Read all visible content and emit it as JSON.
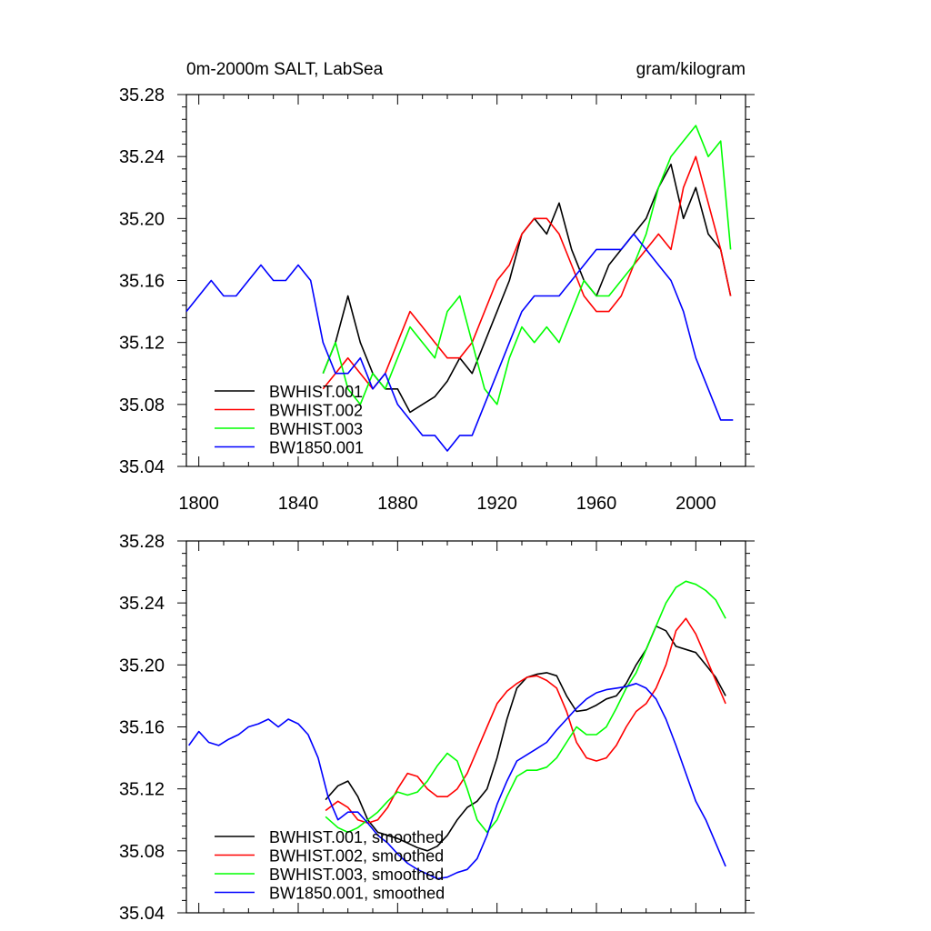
{
  "chart_data": [
    {
      "type": "line",
      "title": "0m-2000m SALT, LabSea",
      "units": "gram/kilogram",
      "xlim": [
        1795,
        2020
      ],
      "ylim": [
        35.04,
        35.28
      ],
      "xticks": [
        1800,
        1840,
        1880,
        1920,
        1960,
        2000
      ],
      "yticks": [
        35.04,
        35.08,
        35.12,
        35.16,
        35.2,
        35.24,
        35.28
      ],
      "xtick_labels": [
        "1800",
        "1840",
        "1880",
        "1920",
        "1960",
        "2000"
      ],
      "ytick_labels": [
        "35.04",
        "35.08",
        "35.12",
        "35.16",
        "35.20",
        "35.24",
        "35.28"
      ],
      "legend_position": "bottom-left",
      "series": [
        {
          "name": "BWHIST.001",
          "color": "#000000",
          "x": [
            1850,
            1855,
            1860,
            1865,
            1870,
            1875,
            1880,
            1885,
            1890,
            1895,
            1900,
            1905,
            1910,
            1915,
            1920,
            1925,
            1930,
            1935,
            1940,
            1945,
            1950,
            1955,
            1960,
            1965,
            1970,
            1975,
            1980,
            1985,
            1990,
            1995,
            2000,
            2005,
            2010,
            2014
          ],
          "y": [
            35.1,
            35.12,
            35.15,
            35.12,
            35.1,
            35.09,
            35.09,
            35.075,
            35.08,
            35.085,
            35.095,
            35.11,
            35.1,
            35.12,
            35.14,
            35.16,
            35.19,
            35.2,
            35.19,
            35.21,
            35.18,
            35.16,
            35.15,
            35.17,
            35.18,
            35.19,
            35.2,
            35.22,
            35.235,
            35.2,
            35.22,
            35.19,
            35.18,
            35.15
          ]
        },
        {
          "name": "BWHIST.002",
          "color": "#ff0000",
          "x": [
            1850,
            1855,
            1860,
            1865,
            1870,
            1875,
            1880,
            1885,
            1890,
            1895,
            1900,
            1905,
            1910,
            1915,
            1920,
            1925,
            1930,
            1935,
            1940,
            1945,
            1950,
            1955,
            1960,
            1965,
            1970,
            1975,
            1980,
            1985,
            1990,
            1995,
            2000,
            2005,
            2010,
            2014
          ],
          "y": [
            35.09,
            35.1,
            35.11,
            35.1,
            35.09,
            35.1,
            35.12,
            35.14,
            35.13,
            35.12,
            35.11,
            35.11,
            35.12,
            35.14,
            35.16,
            35.17,
            35.19,
            35.2,
            35.2,
            35.19,
            35.17,
            35.15,
            35.14,
            35.14,
            35.15,
            35.17,
            35.18,
            35.19,
            35.18,
            35.22,
            35.24,
            35.21,
            35.18,
            35.15
          ]
        },
        {
          "name": "BWHIST.003",
          "color": "#00ff00",
          "x": [
            1850,
            1855,
            1860,
            1865,
            1870,
            1875,
            1880,
            1885,
            1890,
            1895,
            1900,
            1905,
            1910,
            1915,
            1920,
            1925,
            1930,
            1935,
            1940,
            1945,
            1950,
            1955,
            1960,
            1965,
            1970,
            1975,
            1980,
            1985,
            1990,
            1995,
            2000,
            2005,
            2010,
            2014
          ],
          "y": [
            35.1,
            35.12,
            35.09,
            35.08,
            35.1,
            35.09,
            35.11,
            35.13,
            35.12,
            35.11,
            35.14,
            35.15,
            35.12,
            35.09,
            35.08,
            35.11,
            35.13,
            35.12,
            35.13,
            35.12,
            35.14,
            35.16,
            35.15,
            35.15,
            35.16,
            35.17,
            35.19,
            35.22,
            35.24,
            35.25,
            35.26,
            35.24,
            35.25,
            35.18
          ]
        },
        {
          "name": "BW1850.001",
          "color": "#0000ff",
          "x": [
            1795,
            1800,
            1805,
            1810,
            1815,
            1820,
            1825,
            1830,
            1835,
            1840,
            1845,
            1850,
            1855,
            1860,
            1865,
            1870,
            1875,
            1880,
            1885,
            1890,
            1895,
            1900,
            1905,
            1910,
            1915,
            1920,
            1925,
            1930,
            1935,
            1940,
            1945,
            1950,
            1955,
            1960,
            1965,
            1970,
            1975,
            1980,
            1985,
            1990,
            1995,
            2000,
            2005,
            2010,
            2015
          ],
          "y": [
            35.14,
            35.15,
            35.16,
            35.15,
            35.15,
            35.16,
            35.17,
            35.16,
            35.16,
            35.17,
            35.16,
            35.12,
            35.1,
            35.1,
            35.11,
            35.09,
            35.1,
            35.08,
            35.07,
            35.06,
            35.06,
            35.05,
            35.06,
            35.06,
            35.08,
            35.1,
            35.12,
            35.14,
            35.15,
            35.15,
            35.15,
            35.16,
            35.17,
            35.18,
            35.18,
            35.18,
            35.19,
            35.18,
            35.17,
            35.16,
            35.14,
            35.11,
            35.09,
            35.07,
            35.07
          ]
        }
      ]
    },
    {
      "type": "line",
      "title": "",
      "xlim": [
        1795,
        2020
      ],
      "ylim": [
        35.04,
        35.28
      ],
      "xticks": [
        1800,
        1840,
        1880,
        1920,
        1960,
        2000
      ],
      "yticks": [
        35.04,
        35.08,
        35.12,
        35.16,
        35.2,
        35.24,
        35.28
      ],
      "ytick_labels": [
        "35.04",
        "35.08",
        "35.12",
        "35.16",
        "35.20",
        "35.24",
        "35.28"
      ],
      "legend_position": "bottom-left",
      "series": [
        {
          "name": "BWHIST.001, smoothed",
          "color": "#000000",
          "x": [
            1851,
            1856,
            1860,
            1864,
            1868,
            1872,
            1876,
            1880,
            1884,
            1888,
            1892,
            1896,
            1900,
            1904,
            1908,
            1912,
            1916,
            1920,
            1924,
            1928,
            1932,
            1936,
            1940,
            1944,
            1948,
            1952,
            1956,
            1960,
            1964,
            1968,
            1972,
            1976,
            1980,
            1984,
            1988,
            1992,
            1996,
            2000,
            2004,
            2008,
            2012
          ],
          "y": [
            35.113,
            35.122,
            35.125,
            35.115,
            35.1,
            35.092,
            35.09,
            35.088,
            35.085,
            35.082,
            35.08,
            35.083,
            35.09,
            35.1,
            35.108,
            35.112,
            35.12,
            35.14,
            35.165,
            35.185,
            35.192,
            35.194,
            35.195,
            35.193,
            35.18,
            35.17,
            35.171,
            35.174,
            35.178,
            35.18,
            35.188,
            35.2,
            35.21,
            35.225,
            35.222,
            35.212,
            35.21,
            35.208,
            35.2,
            35.192,
            35.18
          ]
        },
        {
          "name": "BWHIST.002, smoothed",
          "color": "#ff0000",
          "x": [
            1851,
            1856,
            1860,
            1864,
            1868,
            1872,
            1876,
            1880,
            1884,
            1888,
            1892,
            1896,
            1900,
            1904,
            1908,
            1912,
            1916,
            1920,
            1924,
            1928,
            1932,
            1936,
            1940,
            1944,
            1948,
            1952,
            1956,
            1960,
            1964,
            1968,
            1972,
            1976,
            1980,
            1984,
            1988,
            1992,
            1996,
            2000,
            2004,
            2008,
            2012
          ],
          "y": [
            35.106,
            35.112,
            35.108,
            35.1,
            35.098,
            35.1,
            35.108,
            35.12,
            35.13,
            35.128,
            35.12,
            35.115,
            35.115,
            35.12,
            35.13,
            35.145,
            35.16,
            35.175,
            35.183,
            35.188,
            35.192,
            35.193,
            35.19,
            35.185,
            35.17,
            35.15,
            35.14,
            35.138,
            35.14,
            35.148,
            35.16,
            35.17,
            35.175,
            35.185,
            35.2,
            35.222,
            35.23,
            35.22,
            35.205,
            35.19,
            35.175
          ]
        },
        {
          "name": "BWHIST.003, smoothed",
          "color": "#00ff00",
          "x": [
            1851,
            1856,
            1860,
            1864,
            1868,
            1872,
            1876,
            1880,
            1884,
            1888,
            1892,
            1896,
            1900,
            1904,
            1908,
            1912,
            1916,
            1920,
            1924,
            1928,
            1932,
            1936,
            1940,
            1944,
            1948,
            1952,
            1956,
            1960,
            1964,
            1968,
            1972,
            1976,
            1980,
            1984,
            1988,
            1992,
            1996,
            2000,
            2004,
            2008,
            2012
          ],
          "y": [
            35.102,
            35.095,
            35.092,
            35.095,
            35.1,
            35.105,
            35.112,
            35.118,
            35.116,
            35.118,
            35.125,
            35.135,
            35.143,
            35.138,
            35.12,
            35.1,
            35.092,
            35.1,
            35.115,
            35.128,
            35.132,
            35.132,
            35.134,
            35.14,
            35.15,
            35.16,
            35.155,
            35.155,
            35.16,
            35.172,
            35.185,
            35.195,
            35.21,
            35.225,
            35.24,
            35.25,
            35.254,
            35.252,
            35.248,
            35.242,
            35.23
          ]
        },
        {
          "name": "BW1850.001, smoothed",
          "color": "#0000ff",
          "x": [
            1796,
            1800,
            1804,
            1808,
            1812,
            1816,
            1820,
            1824,
            1828,
            1832,
            1836,
            1840,
            1844,
            1848,
            1852,
            1856,
            1860,
            1864,
            1868,
            1872,
            1876,
            1880,
            1884,
            1888,
            1892,
            1896,
            1900,
            1904,
            1908,
            1912,
            1916,
            1920,
            1924,
            1928,
            1932,
            1936,
            1940,
            1944,
            1948,
            1952,
            1956,
            1960,
            1964,
            1968,
            1972,
            1976,
            1980,
            1984,
            1988,
            1992,
            1996,
            2000,
            2004,
            2008,
            2012
          ],
          "y": [
            35.148,
            35.157,
            35.15,
            35.148,
            35.152,
            35.155,
            35.16,
            35.162,
            35.165,
            35.16,
            35.165,
            35.162,
            35.155,
            35.14,
            35.115,
            35.1,
            35.105,
            35.105,
            35.098,
            35.09,
            35.085,
            35.078,
            35.072,
            35.068,
            35.065,
            35.062,
            35.063,
            35.066,
            35.068,
            35.075,
            35.09,
            35.11,
            35.125,
            35.138,
            35.142,
            35.146,
            35.15,
            35.158,
            35.165,
            35.172,
            35.178,
            35.182,
            35.184,
            35.185,
            35.186,
            35.188,
            35.185,
            35.178,
            35.165,
            35.148,
            35.13,
            35.112,
            35.1,
            35.085,
            35.07
          ]
        }
      ]
    }
  ]
}
